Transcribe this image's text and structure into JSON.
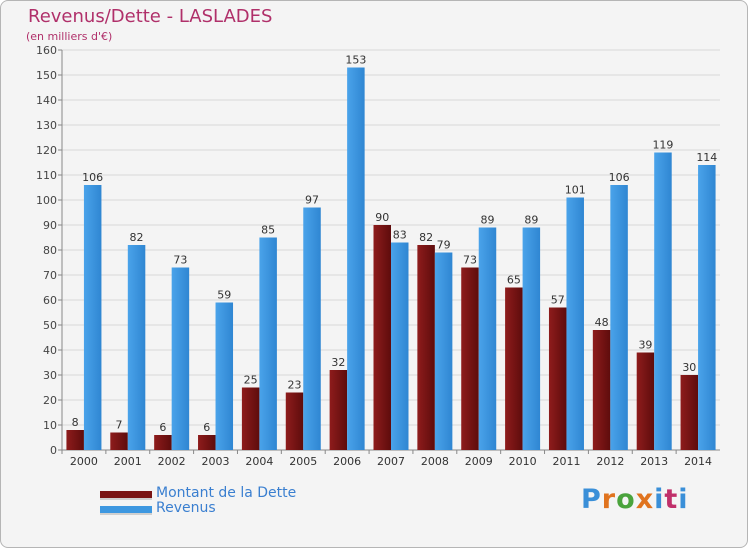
{
  "title": "Revenus/Dette - LASLADES",
  "subtitle": "(en milliers d'€)",
  "logo": {
    "text": "Proxiti",
    "colors": [
      "#3a8fd8",
      "#e0731e",
      "#4aa33c",
      "#e0731e",
      "#3a8fd8",
      "#c0306a",
      "#3a8fd8"
    ]
  },
  "legend": [
    {
      "label": "Montant de la Dette",
      "color": "#7a1414"
    },
    {
      "label": "Revenus",
      "color": "#3d97e0"
    }
  ],
  "chart_data": {
    "type": "bar",
    "categories": [
      "2000",
      "2001",
      "2002",
      "2003",
      "2004",
      "2005",
      "2006",
      "2007",
      "2008",
      "2009",
      "2010",
      "2011",
      "2012",
      "2013",
      "2014"
    ],
    "series": [
      {
        "name": "Montant de la Dette",
        "color": "#7a1414",
        "values": [
          8,
          7,
          6,
          6,
          25,
          23,
          32,
          90,
          82,
          73,
          65,
          57,
          48,
          39,
          30
        ]
      },
      {
        "name": "Revenus",
        "color": "#3d97e0",
        "values": [
          106,
          82,
          73,
          59,
          85,
          97,
          153,
          83,
          79,
          89,
          89,
          101,
          106,
          119,
          114
        ]
      }
    ],
    "ylim": [
      0,
      160
    ],
    "yticks": [
      0,
      10,
      20,
      30,
      40,
      50,
      60,
      70,
      80,
      90,
      100,
      110,
      120,
      130,
      140,
      150,
      160
    ],
    "grid": true,
    "legend_position": "bottom-left"
  }
}
